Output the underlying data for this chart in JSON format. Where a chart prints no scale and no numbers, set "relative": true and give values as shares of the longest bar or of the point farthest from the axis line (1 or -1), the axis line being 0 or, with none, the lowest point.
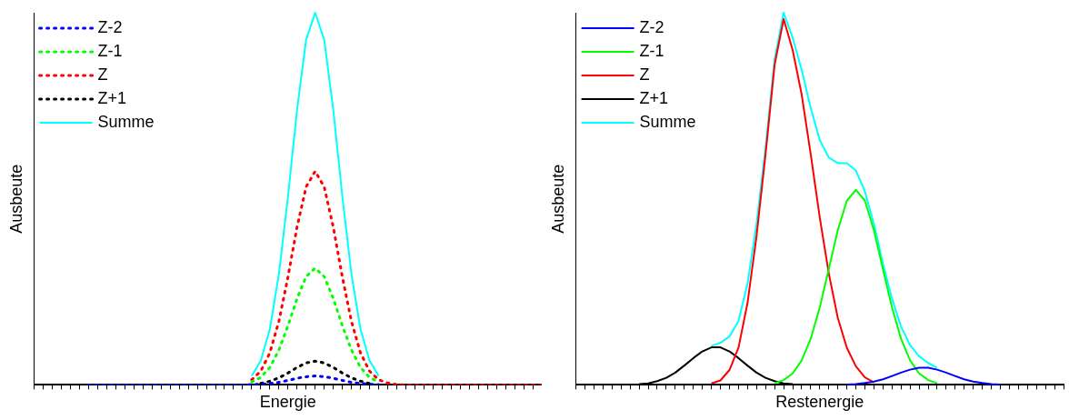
{
  "chart_data": [
    {
      "type": "line",
      "relative": true,
      "xlabel": "Energie",
      "ylabel": "Ausbeute",
      "legend": "top left",
      "marker": "none",
      "tick_labels": false,
      "grid": false,
      "categories": [
        null,
        null,
        null,
        null,
        null,
        null,
        null,
        null,
        null,
        null,
        null,
        null,
        null,
        null,
        null,
        null,
        null,
        null,
        null,
        null,
        null,
        null,
        null,
        null,
        null,
        null,
        null,
        null,
        null,
        null,
        null,
        null,
        null,
        null,
        null,
        null,
        null,
        null,
        null,
        null,
        null,
        null,
        null,
        null,
        null,
        null,
        null,
        null,
        null,
        null,
        null,
        null,
        null,
        null,
        null,
        null,
        null
      ],
      "series": [
        {
          "name": "Z-2",
          "color": "#0000ff",
          "line_style": "dotted",
          "values": [
            null,
            null,
            null,
            null,
            null,
            null,
            0,
            0,
            0,
            0,
            0,
            0,
            0,
            0,
            0,
            0,
            0,
            0,
            0,
            0,
            0,
            0,
            0,
            0,
            0.001,
            0.002,
            0.004,
            0.007,
            0.012,
            0.018,
            0.022,
            0.024,
            0.022,
            0.018,
            0.012,
            0.007,
            0.004,
            0.002,
            0.001,
            null,
            null,
            null,
            null,
            null,
            null,
            null,
            null,
            null,
            null,
            null,
            null,
            null,
            null,
            null,
            null,
            null,
            null
          ]
        },
        {
          "name": "Z-1",
          "color": "#00ff00",
          "line_style": "dotted",
          "values": [
            null,
            null,
            null,
            null,
            null,
            null,
            null,
            null,
            null,
            null,
            null,
            null,
            null,
            null,
            null,
            null,
            null,
            null,
            null,
            null,
            null,
            null,
            null,
            null,
            0.008,
            0.02,
            0.047,
            0.094,
            0.159,
            0.232,
            0.291,
            0.314,
            0.291,
            0.232,
            0.159,
            0.094,
            0.047,
            0.02,
            0.008,
            null,
            null,
            null,
            null,
            null,
            null,
            null,
            null,
            null,
            null,
            null,
            null,
            null,
            null,
            null,
            null,
            null,
            null
          ]
        },
        {
          "name": "Z",
          "color": "#ff0000",
          "line_style": "dotted",
          "values": [
            null,
            null,
            null,
            null,
            null,
            null,
            null,
            null,
            null,
            null,
            null,
            null,
            null,
            null,
            null,
            null,
            null,
            null,
            null,
            null,
            null,
            null,
            null,
            null,
            0.014,
            0.037,
            0.086,
            0.171,
            0.29,
            0.424,
            0.532,
            0.574,
            0.532,
            0.424,
            0.29,
            0.171,
            0.086,
            0.037,
            0.014,
            0.005,
            0.001,
            0,
            0,
            0,
            0,
            0,
            0,
            0,
            0,
            0,
            0,
            0,
            0,
            0,
            0,
            0,
            0
          ]
        },
        {
          "name": "Z+1",
          "color": "#000000",
          "line_style": "dotted",
          "values": [
            null,
            null,
            null,
            null,
            null,
            null,
            null,
            null,
            null,
            null,
            null,
            null,
            null,
            null,
            null,
            null,
            null,
            null,
            null,
            null,
            null,
            null,
            null,
            null,
            null,
            0.004,
            0.01,
            0.019,
            0.032,
            0.047,
            0.059,
            0.064,
            0.059,
            0.047,
            0.032,
            0.019,
            0.01,
            0.004,
            null,
            null,
            null,
            null,
            null,
            null,
            null,
            null,
            null,
            null,
            null,
            null,
            null,
            null,
            null,
            null,
            null,
            null,
            null
          ]
        },
        {
          "name": "Summe",
          "color": "#00ffff",
          "line_style": "solid",
          "values": [
            null,
            null,
            null,
            null,
            null,
            null,
            null,
            null,
            null,
            null,
            null,
            null,
            null,
            null,
            null,
            null,
            null,
            null,
            null,
            null,
            null,
            null,
            null,
            null,
            0.024,
            0.065,
            0.15,
            0.298,
            0.506,
            0.739,
            0.927,
            1,
            0.927,
            0.739,
            0.506,
            0.298,
            0.15,
            0.065,
            0.024,
            null,
            null,
            null,
            null,
            null,
            null,
            null,
            null,
            null,
            null,
            null,
            null,
            null,
            null,
            null,
            null,
            null,
            null
          ]
        }
      ]
    },
    {
      "type": "line",
      "relative": true,
      "xlabel": "Restenergie",
      "ylabel": "Ausbeute",
      "legend": "top left",
      "marker": "none",
      "tick_labels": false,
      "grid": false,
      "categories": [
        null,
        null,
        null,
        null,
        null,
        null,
        null,
        null,
        null,
        null,
        null,
        null,
        null,
        null,
        null,
        null,
        null,
        null,
        null,
        null,
        null,
        null,
        null,
        null,
        null,
        null,
        null,
        null,
        null,
        null,
        null,
        null,
        null,
        null,
        null,
        null,
        null,
        null,
        null,
        null,
        null,
        null,
        null,
        null,
        null,
        null,
        null,
        null,
        null,
        null,
        null,
        null,
        null,
        null,
        null
      ],
      "series": [
        {
          "name": "Z-2",
          "color": "#0000ff",
          "line_style": "solid",
          "values": [
            null,
            null,
            null,
            null,
            null,
            null,
            null,
            null,
            null,
            null,
            null,
            null,
            null,
            null,
            null,
            null,
            null,
            null,
            null,
            null,
            null,
            null,
            null,
            null,
            null,
            null,
            null,
            null,
            null,
            null,
            0.001,
            0.002,
            0.005,
            0.009,
            0.015,
            0.024,
            0.033,
            0.041,
            0.046,
            0.046,
            0.041,
            0.033,
            0.024,
            0.015,
            0.009,
            0.005,
            0.002,
            0.001,
            null,
            null,
            null,
            null,
            null,
            null,
            null
          ]
        },
        {
          "name": "Z-1",
          "color": "#00ff00",
          "line_style": "solid",
          "values": [
            null,
            null,
            null,
            null,
            null,
            null,
            null,
            null,
            null,
            null,
            null,
            null,
            null,
            null,
            null,
            null,
            null,
            null,
            null,
            null,
            null,
            null,
            0.005,
            0.013,
            0.031,
            0.066,
            0.124,
            0.208,
            0.311,
            0.416,
            0.495,
            0.524,
            0.495,
            0.416,
            0.311,
            0.208,
            0.124,
            0.066,
            0.031,
            0.013,
            0.005,
            null,
            null,
            null,
            null,
            null,
            null,
            null,
            null,
            null,
            null,
            null,
            null,
            null,
            null
          ]
        },
        {
          "name": "Z",
          "color": "#ff0000",
          "line_style": "solid",
          "values": [
            null,
            null,
            null,
            null,
            null,
            null,
            null,
            null,
            null,
            null,
            null,
            null,
            null,
            null,
            null,
            0.004,
            0.012,
            0.04,
            0.1,
            0.22,
            0.4,
            0.62,
            0.86,
            0.983,
            0.9,
            0.78,
            0.62,
            0.45,
            0.3,
            0.18,
            0.1,
            0.05,
            0.02,
            0.007,
            null,
            null,
            null,
            null,
            null,
            null,
            null,
            null,
            null,
            null,
            null,
            null,
            null,
            null,
            null,
            null,
            null,
            null,
            null,
            null,
            null
          ]
        },
        {
          "name": "Z+1",
          "color": "#000000",
          "line_style": "solid",
          "values": [
            null,
            null,
            null,
            null,
            null,
            null,
            null,
            0.002,
            0.004,
            0.01,
            0.019,
            0.033,
            0.052,
            0.072,
            0.09,
            0.101,
            0.101,
            0.09,
            0.072,
            0.052,
            0.033,
            0.019,
            0.01,
            0.004,
            0.002,
            null,
            null,
            null,
            null,
            null,
            null,
            null,
            null,
            null,
            null,
            null,
            null,
            null,
            null,
            null,
            null,
            null,
            null,
            null,
            null,
            null,
            null,
            null,
            null,
            null,
            null,
            null,
            null,
            null,
            null
          ]
        },
        {
          "name": "Summe",
          "color": "#00ffff",
          "line_style": "solid",
          "values": [
            null,
            null,
            null,
            null,
            null,
            null,
            null,
            null,
            null,
            null,
            null,
            null,
            null,
            null,
            null,
            0.105,
            0.113,
            0.13,
            0.172,
            0.272,
            0.433,
            0.639,
            0.875,
            1,
            0.933,
            0.846,
            0.744,
            0.658,
            0.611,
            0.596,
            0.596,
            0.576,
            0.52,
            0.432,
            0.326,
            0.232,
            0.157,
            0.107,
            0.077,
            0.059,
            0.046,
            null,
            null,
            null,
            null,
            null,
            null,
            null,
            null,
            null,
            null,
            null,
            null,
            null,
            null
          ]
        }
      ]
    }
  ]
}
